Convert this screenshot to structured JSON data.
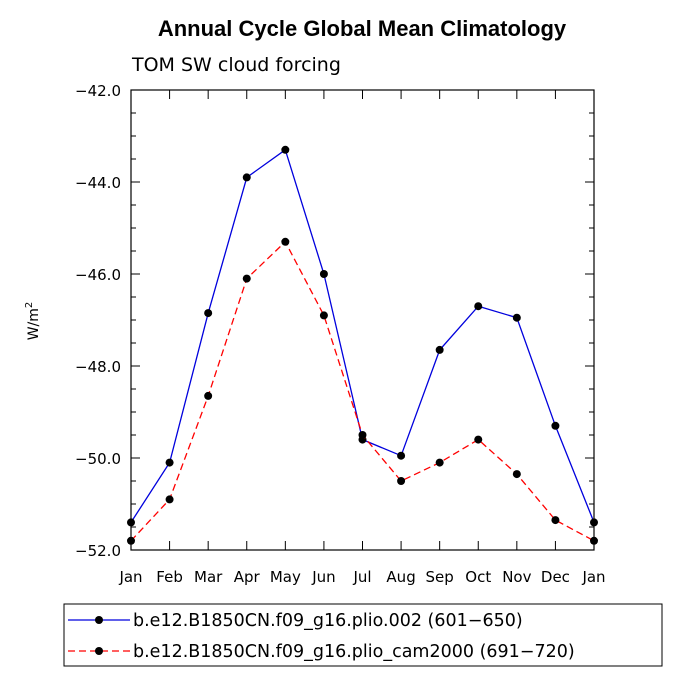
{
  "chart_data": {
    "type": "line",
    "title": "Annual Cycle Global Mean Climatology",
    "subtitle": "TOM SW cloud forcing",
    "xlabel": "",
    "ylabel_base": "W/m",
    "ylabel_sup": "2",
    "categories": [
      "Jan",
      "Feb",
      "Mar",
      "Apr",
      "May",
      "Jun",
      "Jul",
      "Aug",
      "Sep",
      "Oct",
      "Nov",
      "Dec",
      "Jan"
    ],
    "ylim": [
      -52.0,
      -42.0
    ],
    "yticks": [
      -52.0,
      -50.0,
      -48.0,
      -46.0,
      -44.0,
      -42.0
    ],
    "ytick_labels": [
      "−52.0",
      "−50.0",
      "−48.0",
      "−46.0",
      "−44.0",
      "−42.0"
    ],
    "series": [
      {
        "name": "b.e12.B1850CN.f09_g16.plio.002 (601−650)",
        "color": "#0000dd",
        "dashed": false,
        "values": [
          -51.4,
          -50.1,
          -46.85,
          -43.9,
          -43.3,
          -46.0,
          -49.6,
          -49.95,
          -47.65,
          -46.7,
          -46.95,
          -49.3,
          -51.4
        ]
      },
      {
        "name": "b.e12.B1850CN.f09_g16.plio_cam2000 (691−720)",
        "color": "#ff0000",
        "dashed": true,
        "values": [
          -51.8,
          -50.9,
          -48.65,
          -46.1,
          -45.3,
          -46.9,
          -49.5,
          -50.5,
          -50.1,
          -49.6,
          -50.35,
          -51.35,
          -51.8
        ]
      }
    ]
  }
}
